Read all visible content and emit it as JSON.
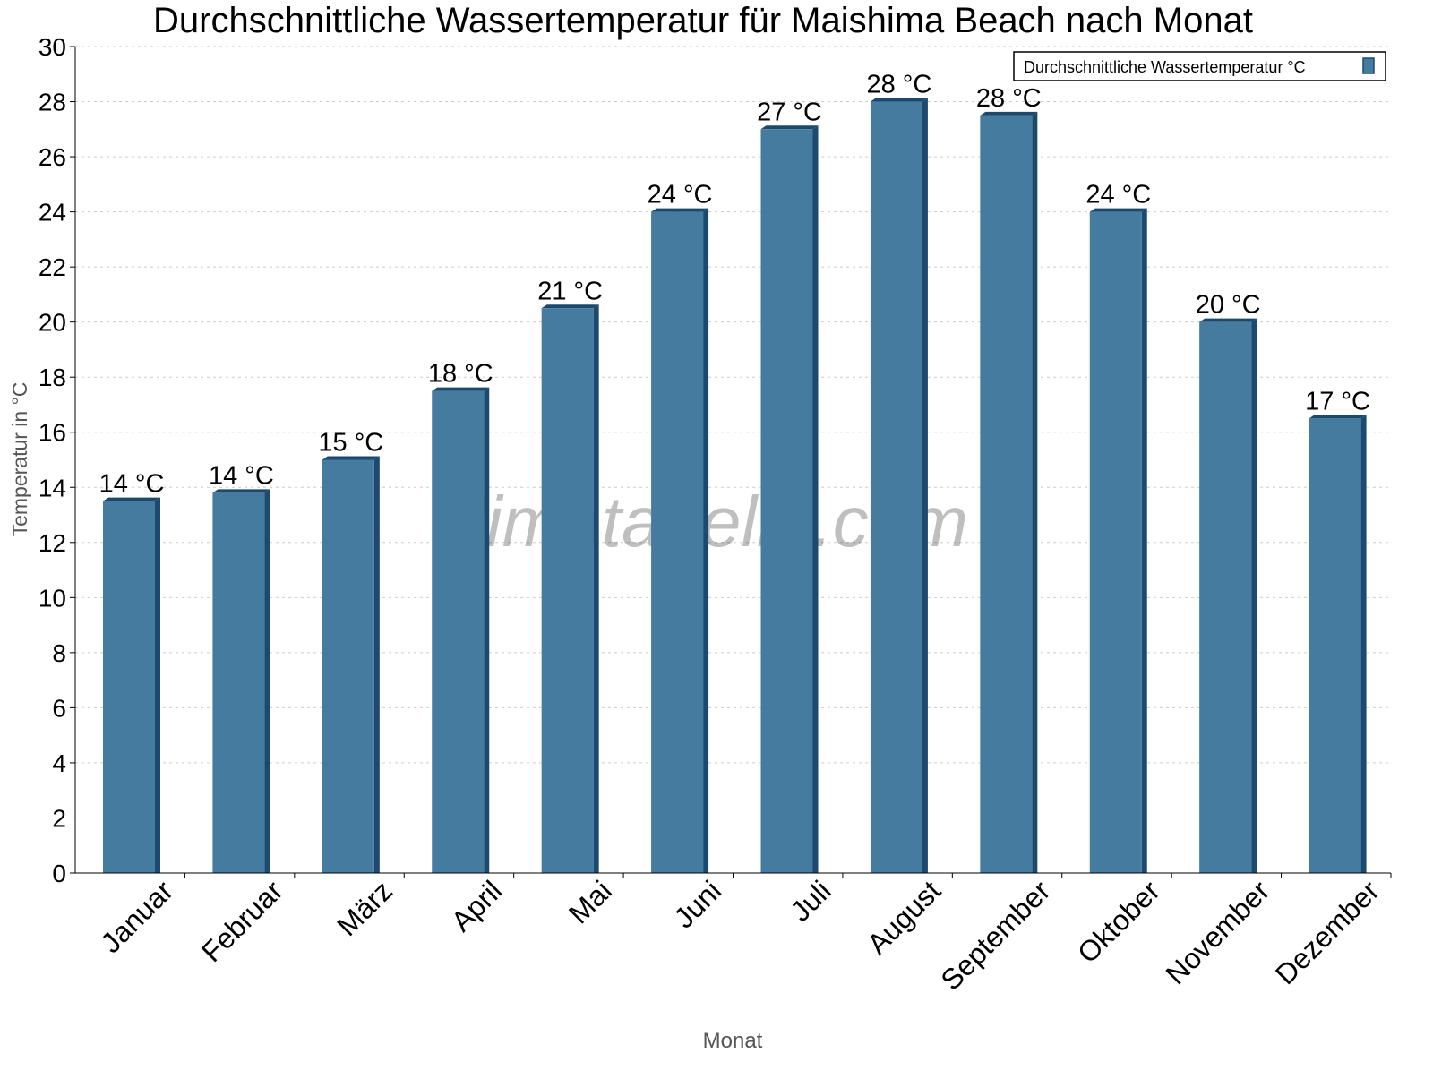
{
  "chart_data": {
    "type": "bar",
    "title": "Durchschnittliche Wassertemperatur für Maishima Beach nach Monat",
    "xlabel": "Monat",
    "ylabel": "Temperatur in °C",
    "ylim": [
      0,
      30
    ],
    "yticks": [
      0,
      2,
      4,
      6,
      8,
      10,
      12,
      14,
      16,
      18,
      20,
      22,
      24,
      26,
      28,
      30
    ],
    "grid": true,
    "legend_placement": "top-right",
    "categories": [
      "Januar",
      "Februar",
      "März",
      "April",
      "Mai",
      "Juni",
      "Juli",
      "August",
      "September",
      "Oktober",
      "November",
      "Dezember"
    ],
    "series": [
      {
        "name": "Durchschnittliche Wassertemperatur °C",
        "color": "#467ba0",
        "values": [
          13.5,
          13.8,
          15,
          17.5,
          20.5,
          24,
          27,
          28,
          27.5,
          24,
          20,
          16.5
        ],
        "labels": [
          "14 °C",
          "14 °C",
          "15 °C",
          "18 °C",
          "21 °C",
          "24 °C",
          "27 °C",
          "28 °C",
          "28 °C",
          "24 °C",
          "20 °C",
          "17 °C"
        ]
      }
    ],
    "watermark": "klimatabelle.com"
  }
}
